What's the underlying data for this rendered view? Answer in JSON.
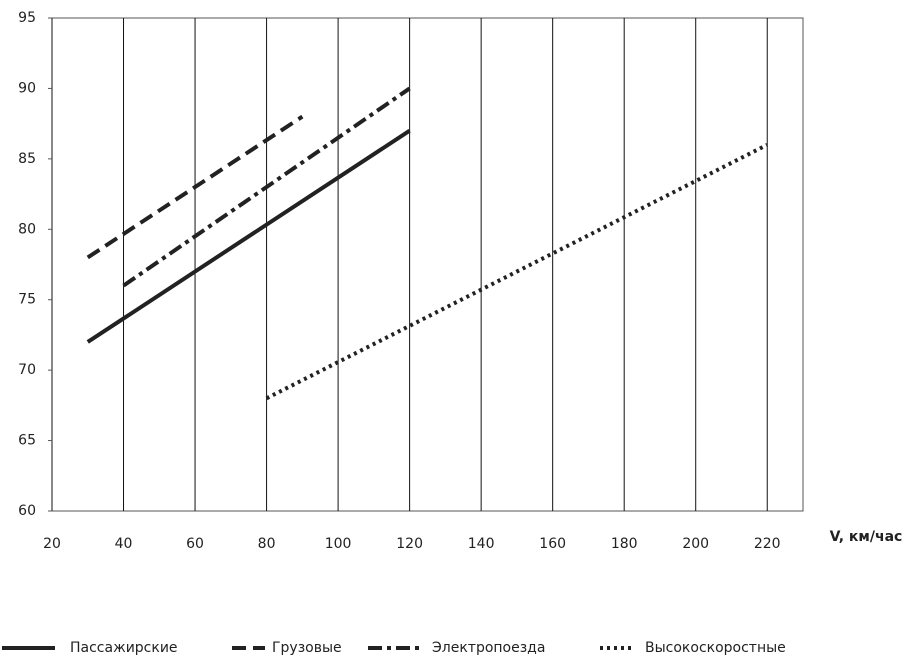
{
  "chart_data": {
    "type": "line",
    "x_label": "V, км/час",
    "xlim": [
      20,
      230
    ],
    "xticks": [
      20,
      40,
      60,
      80,
      100,
      120,
      140,
      160,
      180,
      200,
      220
    ],
    "ylim": [
      60,
      95
    ],
    "yticks": [
      60,
      65,
      70,
      75,
      80,
      85,
      90,
      95
    ],
    "grid": "x",
    "legend": "bottom",
    "series": [
      {
        "name": "Пассажирские",
        "color": "#222222",
        "style": "solid",
        "x": [
          30,
          120
        ],
        "values": [
          72,
          87
        ]
      },
      {
        "name": "Грузовые",
        "color": "#222222",
        "style": "dashed",
        "x": [
          30,
          90
        ],
        "values": [
          78,
          88
        ]
      },
      {
        "name": "Электропоезда",
        "color": "#222222",
        "style": "dashdot",
        "x": [
          40,
          120
        ],
        "values": [
          76,
          90
        ]
      },
      {
        "name": "Высокоскоростные",
        "color": "#222222",
        "style": "dotted",
        "x": [
          80,
          220
        ],
        "values": [
          68,
          86
        ]
      }
    ]
  }
}
